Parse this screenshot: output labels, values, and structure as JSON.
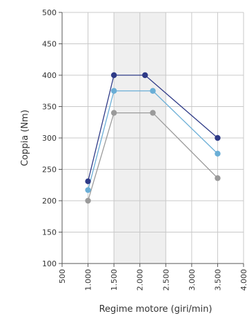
{
  "chart_data": {
    "type": "line",
    "title": "",
    "xlabel": "Regime motore (giri/min)",
    "ylabel": "Coppia (Nm)",
    "xlim": [
      500,
      4000
    ],
    "ylim": [
      100,
      500
    ],
    "x_ticks": [
      500,
      1000,
      1500,
      2000,
      2500,
      3000,
      3500,
      4000
    ],
    "x_tick_labels": [
      "500",
      "1.000",
      "1.500",
      "2.000",
      "2.500",
      "3.000",
      "3.500",
      "4.000"
    ],
    "y_ticks": [
      100,
      150,
      200,
      250,
      300,
      350,
      400,
      450,
      500
    ],
    "y_tick_labels": [
      "100",
      "150",
      "200",
      "250",
      "300",
      "350",
      "400",
      "450",
      "500"
    ],
    "grid": {
      "x": true,
      "y": true
    },
    "highlight_band": [
      1500,
      2500
    ],
    "series": [
      {
        "color": "#2e3a87",
        "points": [
          [
            1000,
            231
          ],
          [
            1500,
            400
          ],
          [
            2100,
            400
          ],
          [
            3500,
            300
          ]
        ]
      },
      {
        "color": "#6aaed6",
        "points": [
          [
            1000,
            217
          ],
          [
            1500,
            375
          ],
          [
            2250,
            375
          ],
          [
            3500,
            275
          ]
        ]
      },
      {
        "color": "#9a9a9a",
        "points": [
          [
            1000,
            200
          ],
          [
            1500,
            340
          ],
          [
            2250,
            340
          ],
          [
            3500,
            236
          ]
        ]
      }
    ]
  }
}
